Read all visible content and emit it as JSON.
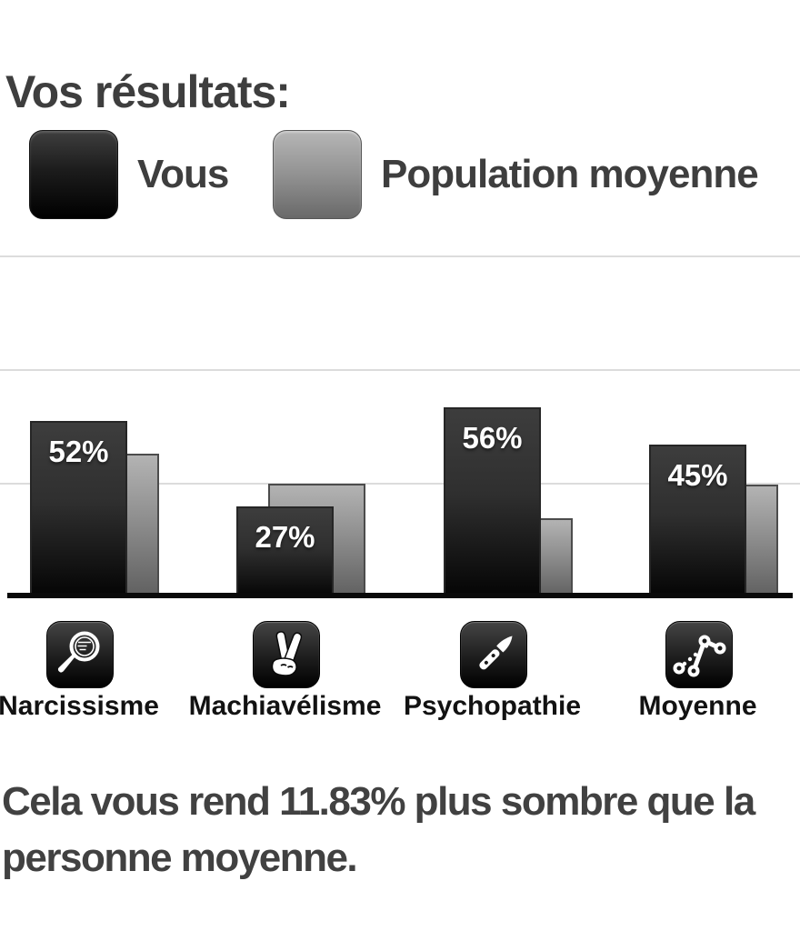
{
  "page": {
    "title": "Vos résultats:",
    "background": "#ffffff"
  },
  "legend": {
    "items": [
      {
        "label": "Vous",
        "swatch_color_top": "#3e3e3e",
        "swatch_color_bottom": "#000000"
      },
      {
        "label": "Population moyenne",
        "swatch_color_top": "#b6b6b6",
        "swatch_color_bottom": "#696969"
      }
    ]
  },
  "chart_data": {
    "type": "bar",
    "title": "",
    "xlabel": "",
    "ylabel": "",
    "categories": [
      "Narcissisme",
      "Machiavélisme",
      "Psychopathie",
      "Moyenne"
    ],
    "series": [
      {
        "name": "Vous",
        "values": [
          52,
          27,
          56,
          45
        ],
        "value_labels": [
          "52%",
          "27%",
          "56%",
          "45%"
        ],
        "color_top": "#3d3d3d",
        "color_bottom": "#040404"
      },
      {
        "name": "Population moyenne",
        "values": [
          42.5,
          33.5,
          23.5,
          33.2
        ],
        "values_estimated_from_gridlines": true,
        "color_top": "#b3b3b3",
        "color_bottom": "#5f5f5f"
      }
    ],
    "ylim": [
      0,
      100
    ],
    "gridline_values": [
      33.3,
      66.7,
      100
    ],
    "grid": "horizontal",
    "legend_position": "top",
    "icons": [
      "hand-mirror-icon",
      "crossed-fingers-icon",
      "knife-icon",
      "trend-dots-icon"
    ]
  },
  "summary": {
    "lines": [
      "Cela vous rend 11.83% plus sombre que la",
      "personne moyenne."
    ],
    "darker_percent": "11.83%"
  },
  "colors": {
    "title_text": "#3e3e3e",
    "legend_text": "#3e3e3e",
    "category_text": "#121212",
    "bar_value_text": "#ffffff",
    "summary_text": "#414141",
    "gridline": "#dcdcdc",
    "axis": "#0a0a0a"
  }
}
